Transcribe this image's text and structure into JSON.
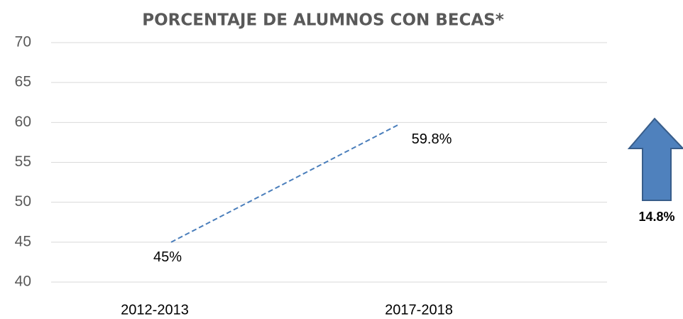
{
  "chart_data": {
    "type": "line",
    "title": "PORCENTAJE DE ALUMNOS CON BECAS*",
    "categories": [
      "2012-2013",
      "2017-2018"
    ],
    "values": [
      45,
      59.8
    ],
    "value_labels": [
      "45%",
      "59.8%"
    ],
    "color": "#4a7ebb",
    "dashed": true,
    "ylim": [
      40,
      70
    ],
    "yticks": [
      40,
      45,
      50,
      55,
      60,
      65,
      70
    ],
    "grid": true,
    "annotation": "14.8%"
  }
}
